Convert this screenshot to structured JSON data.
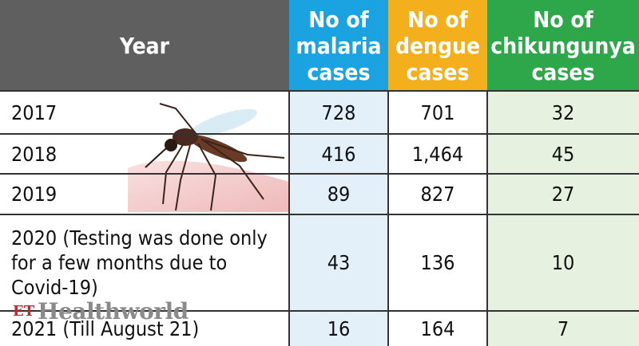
{
  "header": {
    "year": "Year",
    "malaria": "No of\nmalaria\ncases",
    "dengue": "No of\ndengue\ncases",
    "chikungunya": "No of\nchikungunya\ncases"
  },
  "rows": [
    {
      "year": "2017",
      "malaria": "728",
      "dengue": "701",
      "chikungunya": "32"
    },
    {
      "year": "2018",
      "malaria": "416",
      "dengue": "1,464",
      "chikungunya": "45"
    },
    {
      "year": "2019",
      "malaria": "89",
      "dengue": "827",
      "chikungunya": "27"
    },
    {
      "year": "2020 (Testing was done only for a few months due to Covid-19)",
      "malaria": "43",
      "dengue": "136",
      "chikungunya": "10"
    },
    {
      "year": "2021 (Till August 21)",
      "malaria": "16",
      "dengue": "164",
      "chikungunya": "7"
    }
  ],
  "watermark": {
    "et": "ET",
    "name": "Healthworld"
  },
  "colors": {
    "year_header": "#5f5f5f",
    "malaria_header": "#1aa3e0",
    "dengue_header": "#f4b01c",
    "chikungunya_header": "#2ea64a"
  }
}
